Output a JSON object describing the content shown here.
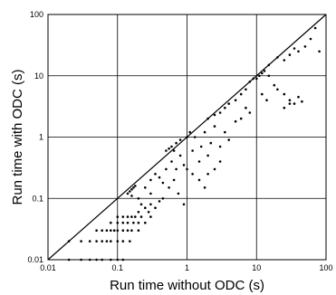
{
  "chart_data": {
    "type": "scatter",
    "title": "",
    "xlabel": "Run time without ODC (s)",
    "ylabel": "Run time with ODC (s)",
    "xscale": "log",
    "yscale": "log",
    "xlim": [
      0.01,
      100
    ],
    "ylim": [
      0.01,
      100
    ],
    "xticks": [
      "0.01",
      "0.1",
      "1",
      "10",
      "100"
    ],
    "yticks": [
      "0.01",
      "0.1",
      "1",
      "10",
      "100"
    ],
    "grid": true,
    "legend": "none",
    "reference_line": "y = x",
    "marker_color": "#000000",
    "points": [
      [
        0.02,
        0.01
      ],
      [
        0.03,
        0.01
      ],
      [
        0.04,
        0.01
      ],
      [
        0.05,
        0.01
      ],
      [
        0.06,
        0.01
      ],
      [
        0.08,
        0.01
      ],
      [
        0.1,
        0.01
      ],
      [
        0.12,
        0.01
      ],
      [
        0.02,
        0.02
      ],
      [
        0.03,
        0.02
      ],
      [
        0.04,
        0.02
      ],
      [
        0.05,
        0.02
      ],
      [
        0.06,
        0.02
      ],
      [
        0.07,
        0.02
      ],
      [
        0.08,
        0.02
      ],
      [
        0.1,
        0.02
      ],
      [
        0.12,
        0.02
      ],
      [
        0.15,
        0.02
      ],
      [
        0.05,
        0.03
      ],
      [
        0.06,
        0.03
      ],
      [
        0.07,
        0.03
      ],
      [
        0.08,
        0.03
      ],
      [
        0.09,
        0.03
      ],
      [
        0.1,
        0.03
      ],
      [
        0.12,
        0.03
      ],
      [
        0.14,
        0.03
      ],
      [
        0.16,
        0.03
      ],
      [
        0.2,
        0.03
      ],
      [
        0.08,
        0.04
      ],
      [
        0.1,
        0.04
      ],
      [
        0.12,
        0.04
      ],
      [
        0.14,
        0.04
      ],
      [
        0.17,
        0.04
      ],
      [
        0.2,
        0.04
      ],
      [
        0.25,
        0.04
      ],
      [
        0.1,
        0.05
      ],
      [
        0.12,
        0.05
      ],
      [
        0.14,
        0.05
      ],
      [
        0.16,
        0.05
      ],
      [
        0.18,
        0.05
      ],
      [
        0.22,
        0.05
      ],
      [
        0.3,
        0.05
      ],
      [
        0.2,
        0.06
      ],
      [
        0.25,
        0.07
      ],
      [
        0.3,
        0.08
      ],
      [
        0.35,
        0.07
      ],
      [
        0.4,
        0.09
      ],
      [
        0.22,
        0.08
      ],
      [
        0.28,
        0.06
      ],
      [
        0.14,
        0.12
      ],
      [
        0.15,
        0.13
      ],
      [
        0.16,
        0.14
      ],
      [
        0.17,
        0.15
      ],
      [
        0.16,
        0.11
      ],
      [
        0.18,
        0.16
      ],
      [
        0.2,
        0.1
      ],
      [
        0.25,
        0.15
      ],
      [
        0.3,
        0.2
      ],
      [
        0.35,
        0.25
      ],
      [
        0.4,
        0.22
      ],
      [
        0.45,
        0.18
      ],
      [
        0.5,
        0.3
      ],
      [
        0.3,
        0.12
      ],
      [
        0.6,
        0.4
      ],
      [
        0.7,
        0.3
      ],
      [
        0.8,
        0.5
      ],
      [
        0.9,
        0.35
      ],
      [
        0.55,
        0.15
      ],
      [
        0.65,
        0.2
      ],
      [
        0.75,
        0.12
      ],
      [
        0.9,
        0.08
      ],
      [
        0.45,
        0.1
      ],
      [
        0.5,
        0.6
      ],
      [
        0.55,
        0.65
      ],
      [
        0.6,
        0.7
      ],
      [
        0.65,
        0.6
      ],
      [
        0.7,
        0.8
      ],
      [
        0.8,
        0.9
      ],
      [
        1.0,
        1.0
      ],
      [
        1.1,
        1.2
      ],
      [
        1.2,
        0.6
      ],
      [
        1.3,
        1.0
      ],
      [
        1.5,
        0.4
      ],
      [
        1.6,
        0.7
      ],
      [
        1.8,
        1.2
      ],
      [
        2.0,
        0.5
      ],
      [
        2.2,
        0.8
      ],
      [
        2.5,
        1.5
      ],
      [
        1.0,
        0.3
      ],
      [
        1.2,
        0.25
      ],
      [
        1.5,
        0.2
      ],
      [
        1.8,
        0.15
      ],
      [
        2.0,
        0.25
      ],
      [
        2.5,
        0.3
      ],
      [
        3.0,
        0.4
      ],
      [
        2.0,
        2.0
      ],
      [
        2.5,
        2.3
      ],
      [
        3.0,
        2.5
      ],
      [
        3.5,
        3.0
      ],
      [
        4.0,
        3.5
      ],
      [
        3.0,
        0.7
      ],
      [
        3.5,
        1.2
      ],
      [
        4.0,
        0.9
      ],
      [
        5.0,
        4.0
      ],
      [
        6.0,
        5.0
      ],
      [
        7.0,
        6.0
      ],
      [
        8.0,
        8.0
      ],
      [
        9.0,
        9.0
      ],
      [
        6.0,
        2.0
      ],
      [
        7.0,
        3.0
      ],
      [
        5.0,
        1.8
      ],
      [
        8.0,
        2.5
      ],
      [
        10,
        9
      ],
      [
        11,
        10
      ],
      [
        12,
        11
      ],
      [
        13,
        12
      ],
      [
        15,
        10
      ],
      [
        18,
        7
      ],
      [
        12,
        5
      ],
      [
        14,
        4
      ],
      [
        20,
        6
      ],
      [
        25,
        5
      ],
      [
        30,
        4
      ],
      [
        35,
        3.5
      ],
      [
        40,
        4.5
      ],
      [
        25,
        3
      ],
      [
        30,
        3.5
      ],
      [
        45,
        3.8
      ],
      [
        20,
        20
      ],
      [
        25,
        18
      ],
      [
        30,
        22
      ],
      [
        40,
        25
      ],
      [
        50,
        30
      ],
      [
        60,
        40
      ],
      [
        70,
        60
      ],
      [
        80,
        25
      ],
      [
        15,
        15
      ],
      [
        35,
        28
      ]
    ]
  }
}
